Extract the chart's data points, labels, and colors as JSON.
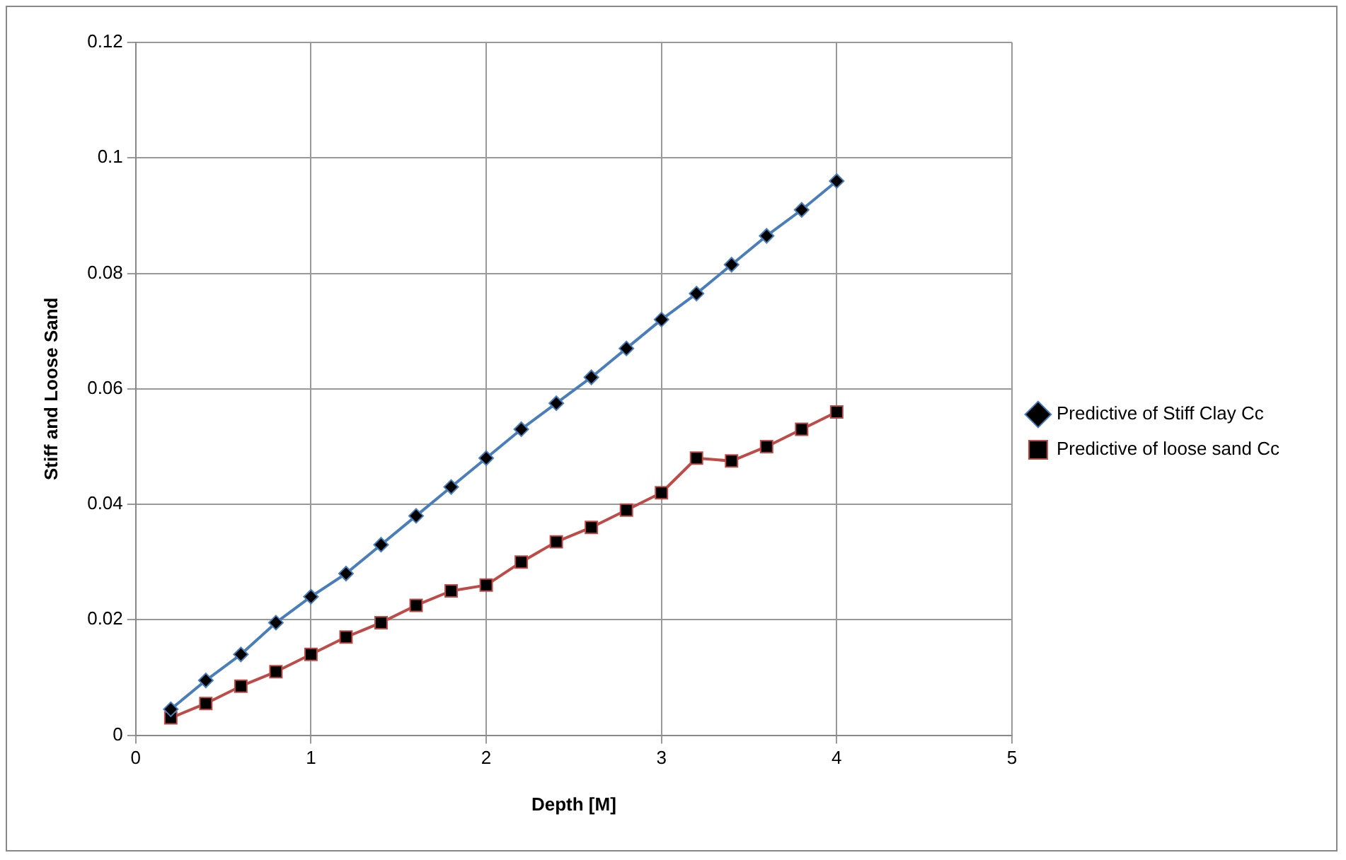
{
  "chart_data": {
    "type": "line",
    "xlabel": "Depth [M]",
    "ylabel": "Stiff and Loose Sand",
    "x": [
      0.2,
      0.4,
      0.6,
      0.8,
      1.0,
      1.2,
      1.4,
      1.6,
      1.8,
      2.0,
      2.2,
      2.4,
      2.6,
      2.8,
      3.0,
      3.2,
      3.4,
      3.6,
      3.8,
      4.0
    ],
    "series": [
      {
        "name": "Predictive of Stiff Clay Cc",
        "color": "#4a7ebb",
        "marker": "diamond",
        "values": [
          0.0045,
          0.0095,
          0.014,
          0.0195,
          0.024,
          0.028,
          0.033,
          0.038,
          0.043,
          0.048,
          0.053,
          0.0575,
          0.062,
          0.067,
          0.072,
          0.0765,
          0.0815,
          0.0865,
          0.091,
          0.096
        ]
      },
      {
        "name": "Predictive of loose sand Cc",
        "color": "#be4b48",
        "marker": "square",
        "values": [
          0.003,
          0.0055,
          0.0085,
          0.011,
          0.014,
          0.017,
          0.0195,
          0.0225,
          0.025,
          0.026,
          0.03,
          0.0335,
          0.036,
          0.039,
          0.042,
          0.048,
          0.0475,
          0.05,
          0.053,
          0.056
        ]
      }
    ],
    "xlim": [
      0,
      5
    ],
    "xticks": [
      0,
      1,
      2,
      3,
      4,
      5
    ],
    "ylim": [
      0,
      0.12
    ],
    "yticks": [
      0,
      0.02,
      0.04,
      0.06,
      0.08,
      0.1,
      0.12
    ],
    "grid": true,
    "legend": "right"
  }
}
